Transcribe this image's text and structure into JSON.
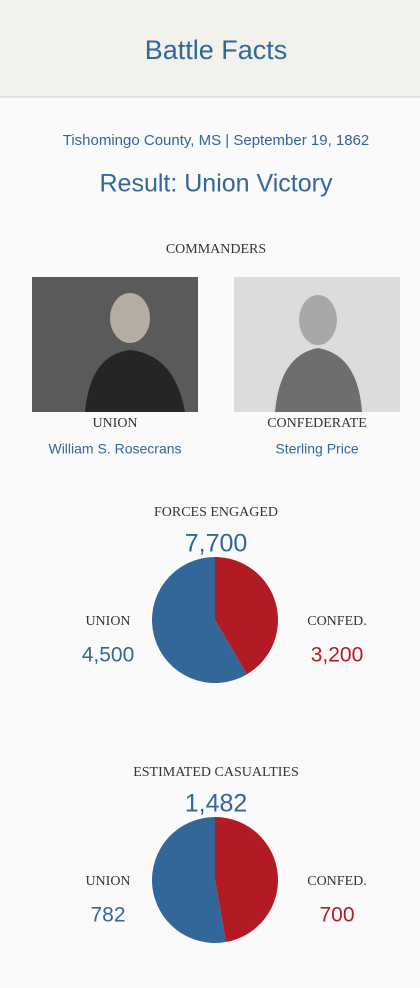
{
  "header": {
    "title": "Battle Facts"
  },
  "location_date": "Tishomingo County, MS | September 19, 1862",
  "result": "Result: Union Victory",
  "commanders": {
    "heading": "COMMANDERS",
    "union": {
      "side": "UNION",
      "name": "William S. Rosecrans"
    },
    "confederate": {
      "side": "CONFEDERATE",
      "name": "Sterling Price"
    }
  },
  "forces": {
    "type": "pie",
    "title": "FORCES ENGAGED",
    "total": {
      "value": 7700,
      "label": "7,700"
    },
    "categories": [
      "UNION",
      "CONFED."
    ],
    "values": [
      4500,
      3200
    ],
    "value_labels": [
      "4,500",
      "3,200"
    ],
    "colors": [
      "#336699",
      "#b31b24"
    ]
  },
  "casualties": {
    "type": "pie",
    "title": "ESTIMATED CASUALTIES",
    "total": {
      "value": 1482,
      "label": "1,482"
    },
    "categories": [
      "UNION",
      "CONFED."
    ],
    "values": [
      782,
      700
    ],
    "value_labels": [
      "782",
      "700"
    ],
    "colors": [
      "#336699",
      "#b31b24"
    ]
  }
}
